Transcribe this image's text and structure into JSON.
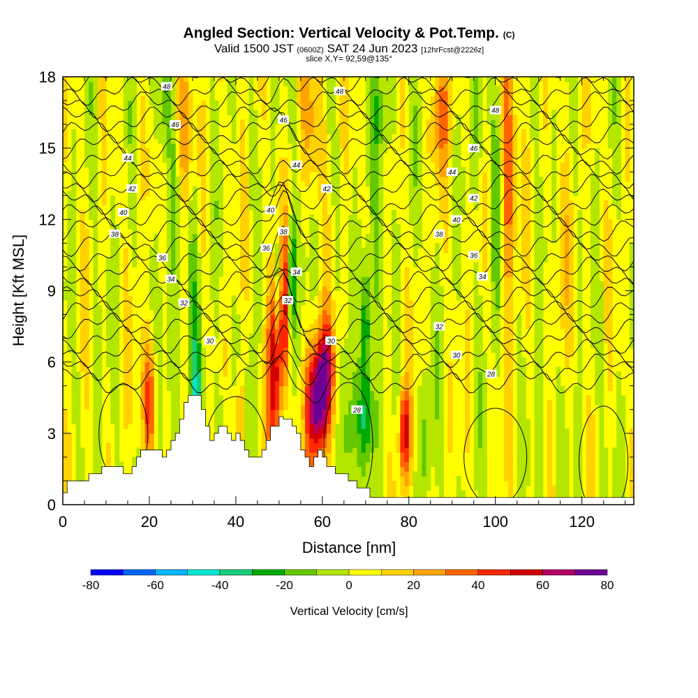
{
  "title": {
    "main": "Angled Section: Vertical Velocity & Pot.Temp.",
    "main_mark": "(C)",
    "sub_valid": "Valid 1500 JST",
    "sub_utc": "(0600Z)",
    "sub_date": "SAT 24 Jun 2023",
    "sub_fcst": "[12hrFcst@2226z]",
    "slice": "slice X,Y= 92,59@135°"
  },
  "colors": {
    "scale": [
      "#0000ff",
      "#0066ff",
      "#00b4ff",
      "#00e6d2",
      "#14cd78",
      "#00aa00",
      "#64c800",
      "#b4e600",
      "#ffff00",
      "#ffd200",
      "#ffa500",
      "#ff6400",
      "#ff2800",
      "#d20000",
      "#b40064",
      "#6e0096"
    ],
    "terrain": "#ffffff",
    "contour": "#000000"
  },
  "chart_data": {
    "type": "heatmap",
    "xlabel": "Distance [nm]",
    "ylabel": "Height [Kft MSL]",
    "xlim": [
      0,
      132
    ],
    "ylim": [
      0,
      18
    ],
    "xticks": [
      "0",
      "20",
      "40",
      "60",
      "80",
      "100",
      "120"
    ],
    "yticks": [
      "0",
      "3",
      "6",
      "9",
      "12",
      "15",
      "18"
    ],
    "colorbar": {
      "label": "Vertical Velocity [cm/s]",
      "min": -80,
      "max": 80,
      "step": 10,
      "ticks": [
        "-80",
        "-60",
        "-40",
        "-20",
        "0",
        "20",
        "40",
        "60",
        "80"
      ]
    },
    "terrain_kft": [
      [
        0,
        0.5
      ],
      [
        1,
        1.0
      ],
      [
        5,
        1.0
      ],
      [
        6,
        1.3
      ],
      [
        9,
        1.6
      ],
      [
        13,
        1.6
      ],
      [
        14,
        1.3
      ],
      [
        15,
        1.3
      ],
      [
        16,
        1.6
      ],
      [
        17,
        2.0
      ],
      [
        18,
        2.3
      ],
      [
        22,
        2.3
      ],
      [
        23,
        2.0
      ],
      [
        24,
        2.3
      ],
      [
        25,
        2.7
      ],
      [
        26,
        3.0
      ],
      [
        27,
        3.6
      ],
      [
        28,
        4.3
      ],
      [
        29,
        4.6
      ],
      [
        31,
        4.6
      ],
      [
        32,
        4.0
      ],
      [
        33,
        3.3
      ],
      [
        34,
        2.7
      ],
      [
        35,
        3.0
      ],
      [
        36,
        3.3
      ],
      [
        38,
        3.0
      ],
      [
        39,
        2.7
      ],
      [
        40,
        3.0
      ],
      [
        41,
        2.7
      ],
      [
        42,
        2.3
      ],
      [
        43,
        2.0
      ],
      [
        45,
        2.0
      ],
      [
        46,
        2.3
      ],
      [
        47,
        2.7
      ],
      [
        48,
        3.3
      ],
      [
        50,
        3.7
      ],
      [
        51,
        3.6
      ],
      [
        53,
        3.3
      ],
      [
        54,
        3.0
      ],
      [
        55,
        2.3
      ],
      [
        56,
        2.0
      ],
      [
        57,
        1.6
      ],
      [
        58,
        2.0
      ],
      [
        59,
        2.3
      ],
      [
        60,
        2.0
      ],
      [
        61,
        1.6
      ],
      [
        63,
        1.3
      ],
      [
        66,
        1.0
      ],
      [
        68,
        0.7
      ],
      [
        71,
        0.3
      ],
      [
        132,
        0.3
      ]
    ],
    "vertical_velocity_features": [
      {
        "x": 20,
        "z": 4.5,
        "wx": 1.6,
        "wz": 2.6,
        "w": 45
      },
      {
        "x": 25,
        "z": 5.5,
        "wx": 2.0,
        "wz": 6.0,
        "w": -15
      },
      {
        "x": 31,
        "z": 4.0,
        "wx": 1.3,
        "wz": 2.5,
        "w": -30
      },
      {
        "x": 30,
        "z": 9.0,
        "wx": 1.5,
        "wz": 5.0,
        "w": -20
      },
      {
        "x": 36,
        "z": 2.0,
        "wx": 1.5,
        "wz": 3.0,
        "w": -20
      },
      {
        "x": 41,
        "z": 3.3,
        "wx": 1.2,
        "wz": 2.5,
        "w": 35
      },
      {
        "x": 43,
        "z": 3.5,
        "wx": 1.6,
        "wz": 3.0,
        "w": -18
      },
      {
        "x": 49,
        "z": 6.0,
        "wx": 1.6,
        "wz": 4.2,
        "w": 65
      },
      {
        "x": 50,
        "z": 9.0,
        "wx": 1.2,
        "wz": 2.5,
        "w": -45
      },
      {
        "x": 51,
        "z": 8.5,
        "wx": 1.0,
        "wz": 3.0,
        "w": 55
      },
      {
        "x": 53,
        "z": 9.5,
        "wx": 1.0,
        "wz": 2.5,
        "w": -35
      },
      {
        "x": 59,
        "z": 4.3,
        "wx": 2.6,
        "wz": 2.5,
        "w": 80
      },
      {
        "x": 61,
        "z": 6.0,
        "wx": 2.0,
        "wz": 2.0,
        "w": 35
      },
      {
        "x": 66,
        "z": 2.5,
        "wx": 1.5,
        "wz": 3.0,
        "w": -25
      },
      {
        "x": 70,
        "z": 7.5,
        "wx": 1.0,
        "wz": 3.0,
        "w": -40
      },
      {
        "x": 70,
        "z": 3.5,
        "wx": 2.0,
        "wz": 2.0,
        "w": -30
      },
      {
        "x": 72,
        "z": 9.0,
        "wx": 1.5,
        "wz": 5.0,
        "w": -15
      },
      {
        "x": 79,
        "z": 3.0,
        "wx": 1.3,
        "wz": 2.0,
        "w": 55
      },
      {
        "x": 84,
        "z": 3.0,
        "wx": 1.5,
        "wz": 3.0,
        "w": -18
      },
      {
        "x": 88,
        "z": 16.5,
        "wx": 2.5,
        "wz": 2.5,
        "w": 25
      },
      {
        "x": 96,
        "z": 16.0,
        "wx": 2.0,
        "wz": 3.0,
        "w": -15
      },
      {
        "x": 103,
        "z": 14.0,
        "wx": 1.6,
        "wz": 5.0,
        "w": 40
      },
      {
        "x": 100,
        "z": 12.0,
        "wx": 1.5,
        "wz": 5.0,
        "w": -15
      },
      {
        "x": 23,
        "z": 17.0,
        "wx": 2.0,
        "wz": 2.5,
        "w": -20
      },
      {
        "x": 28,
        "z": 16.0,
        "wx": 2.0,
        "wz": 3.0,
        "w": 25
      },
      {
        "x": 58,
        "z": 16.0,
        "wx": 2.5,
        "wz": 3.0,
        "w": 20
      },
      {
        "x": 74,
        "z": 16.5,
        "wx": 2.5,
        "wz": 2.5,
        "w": -18
      },
      {
        "x": 111,
        "z": 3.0,
        "wx": 2.0,
        "wz": 3.0,
        "w": -10
      },
      {
        "x": 115,
        "z": 10.0,
        "wx": 2.0,
        "wz": 4.0,
        "w": 10
      }
    ],
    "potential_temperature_contours": {
      "levels": [
        26,
        27,
        28,
        29,
        30,
        31,
        32,
        33,
        34,
        35,
        36,
        37,
        38,
        39,
        40,
        41,
        42,
        43,
        44,
        45,
        46,
        47,
        48
      ],
      "labels": [
        {
          "text": "48",
          "x": 24,
          "z": 17.6
        },
        {
          "text": "48",
          "x": 64,
          "z": 17.4
        },
        {
          "text": "48",
          "x": 100,
          "z": 16.6
        },
        {
          "text": "46",
          "x": 26,
          "z": 16.0
        },
        {
          "text": "46",
          "x": 51,
          "z": 16.2
        },
        {
          "text": "46",
          "x": 95,
          "z": 15.0
        },
        {
          "text": "44",
          "x": 15,
          "z": 14.6
        },
        {
          "text": "44",
          "x": 54,
          "z": 14.3
        },
        {
          "text": "44",
          "x": 90,
          "z": 14.0
        },
        {
          "text": "42",
          "x": 16,
          "z": 13.3
        },
        {
          "text": "42",
          "x": 61,
          "z": 13.3
        },
        {
          "text": "42",
          "x": 95,
          "z": 12.9
        },
        {
          "text": "40",
          "x": 14,
          "z": 12.3
        },
        {
          "text": "40",
          "x": 48,
          "z": 12.4
        },
        {
          "text": "40",
          "x": 91,
          "z": 12.0
        },
        {
          "text": "38",
          "x": 12,
          "z": 11.4
        },
        {
          "text": "38",
          "x": 51,
          "z": 11.5
        },
        {
          "text": "38",
          "x": 87,
          "z": 11.4
        },
        {
          "text": "36",
          "x": 23,
          "z": 10.4
        },
        {
          "text": "36",
          "x": 47,
          "z": 10.8
        },
        {
          "text": "36",
          "x": 95,
          "z": 10.5
        },
        {
          "text": "34",
          "x": 25,
          "z": 9.5
        },
        {
          "text": "34",
          "x": 54,
          "z": 9.8
        },
        {
          "text": "34",
          "x": 97,
          "z": 9.6
        },
        {
          "text": "32",
          "x": 28,
          "z": 8.5
        },
        {
          "text": "32",
          "x": 52,
          "z": 8.6
        },
        {
          "text": "32",
          "x": 87,
          "z": 7.5
        },
        {
          "text": "30",
          "x": 34,
          "z": 6.9
        },
        {
          "text": "30",
          "x": 62,
          "z": 6.9
        },
        {
          "text": "30",
          "x": 91,
          "z": 6.3
        },
        {
          "text": "28",
          "x": 68,
          "z": 4.0
        },
        {
          "text": "28",
          "x": 99,
          "z": 5.5
        }
      ]
    }
  }
}
